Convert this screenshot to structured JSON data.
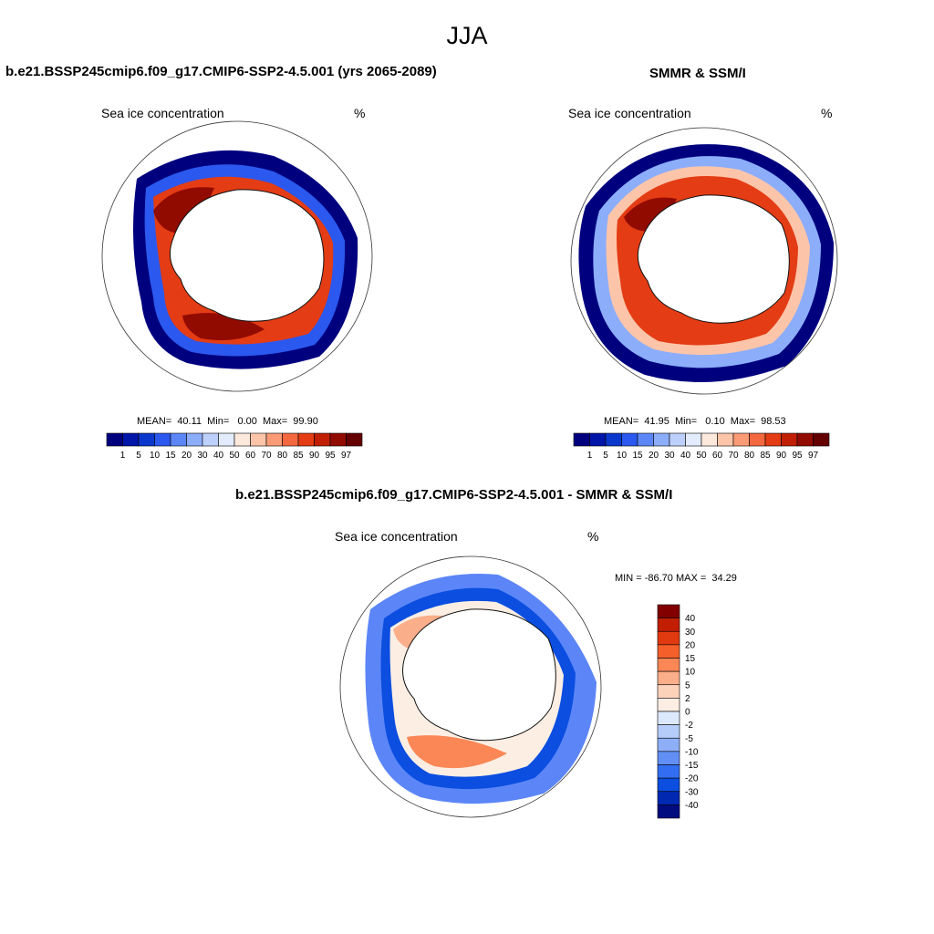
{
  "figure": {
    "season_title": "JJA"
  },
  "panels": [
    {
      "title": "b.e21.BSSP245cmip6.f09_g17.CMIP6-SSP2-4.5.001 (yrs 2065-2089)",
      "left_label": "Sea ice concentration",
      "right_label": "%",
      "stats": "MEAN=  40.11  Min=   0.00  Max=  99.90"
    },
    {
      "title": "SMMR & SSM/I",
      "left_label": "Sea ice concentration",
      "right_label": "%",
      "stats": "MEAN=  41.95  Min=   0.10  Max=  98.53"
    },
    {
      "title": "b.e21.BSSP245cmip6.f09_g17.CMIP6-SSP2-4.5.001 - SMMR & SSM/I",
      "left_label": "Sea ice concentration",
      "right_label": "%",
      "stats": "MIN = -86.70 MAX =  34.29"
    }
  ],
  "concentration_colorbar": {
    "levels": [
      "1",
      "5",
      "10",
      "15",
      "20",
      "30",
      "40",
      "50",
      "60",
      "70",
      "80",
      "85",
      "90",
      "95",
      "97"
    ],
    "colors": [
      "#00007f",
      "#0016a8",
      "#0a37cc",
      "#2b58ee",
      "#5c86f7",
      "#8cadf9",
      "#bcd0fb",
      "#e2ecfd",
      "#fde8dc",
      "#fcc5aa",
      "#fa9b76",
      "#f3683f",
      "#e43c14",
      "#c11f04",
      "#920b01",
      "#650000"
    ]
  },
  "difference_colorbar": {
    "levels": [
      "40",
      "30",
      "20",
      "15",
      "10",
      "5",
      "2",
      "0",
      "-2",
      "-5",
      "-10",
      "-15",
      "-20",
      "-30",
      "-40"
    ],
    "colors": [
      "#820000",
      "#c21e04",
      "#e23a10",
      "#f45f2a",
      "#fa8755",
      "#fbae8a",
      "#fcd2bb",
      "#fdeee4",
      "#dce8fc",
      "#b6cdfa",
      "#8eaff8",
      "#628ff5",
      "#336ef2",
      "#0b4ee0",
      "#0029b2",
      "#000c80"
    ]
  },
  "map_colors": {
    "outline": "#333333",
    "coast": "#111111"
  }
}
